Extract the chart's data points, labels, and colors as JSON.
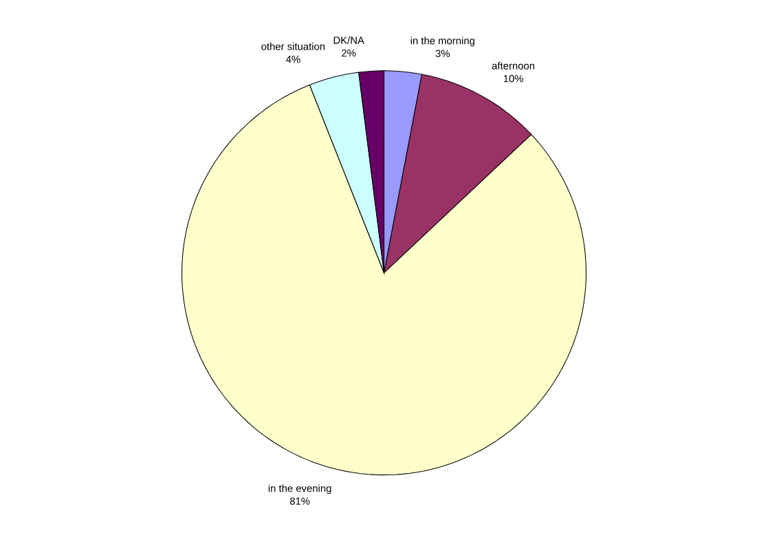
{
  "chart_data": {
    "type": "pie",
    "categories": [
      "in the morning",
      "afternoon",
      "in the evening",
      "other situation",
      "DK/NA"
    ],
    "values": [
      3,
      10,
      81,
      4,
      2
    ],
    "value_labels": [
      "3%",
      "10%",
      "81%",
      "4%",
      "2%"
    ],
    "colors": [
      "#9999ff",
      "#993366",
      "#ffffcc",
      "#ccffff",
      "#660066"
    ]
  }
}
